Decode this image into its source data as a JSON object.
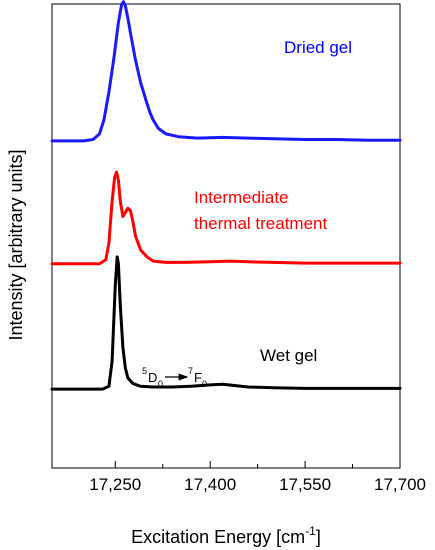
{
  "chart_data": {
    "type": "line",
    "xlabel": "Excitation Energy [cm",
    "xlabel_sup": "-1",
    "xlabel_end": "]",
    "ylabel": "Intensity  [arbitrary units]",
    "xlim": [
      17150,
      17700
    ],
    "xticks": [
      17250,
      17400,
      17550,
      17700
    ],
    "xtick_labels": [
      "17,250",
      "17,400",
      "17,550",
      "17,700"
    ],
    "minor_xticks": [
      17325,
      17475,
      17625
    ],
    "y_scale": "arbitrary (stacked offsets, no numeric ticks)",
    "grid": false,
    "series": [
      {
        "name": "Dried gel",
        "color": "#1a1aff",
        "label_color": "#0000ff",
        "baseline": 0.705,
        "x": [
          17150,
          17180,
          17200,
          17215,
          17225,
          17232,
          17240,
          17248,
          17255,
          17260,
          17263,
          17266,
          17270,
          17275,
          17282,
          17290,
          17298,
          17305,
          17310,
          17318,
          17330,
          17350,
          17380,
          17420,
          17460,
          17500,
          17550,
          17600,
          17650,
          17700
        ],
        "y": [
          0.0,
          0.0,
          0.0,
          0.01,
          0.05,
          0.15,
          0.35,
          0.6,
          0.85,
          0.98,
          1.0,
          0.97,
          0.88,
          0.75,
          0.58,
          0.42,
          0.3,
          0.2,
          0.15,
          0.09,
          0.05,
          0.03,
          0.02,
          0.025,
          0.02,
          0.015,
          0.01,
          0.01,
          0.005,
          0.005
        ]
      },
      {
        "name": "Intermediate thermal treatment",
        "color": "#ff0000",
        "label_color": "#ff0000",
        "baseline": 0.44,
        "x": [
          17150,
          17200,
          17225,
          17235,
          17240,
          17245,
          17249,
          17252,
          17255,
          17258,
          17262,
          17266,
          17270,
          17274,
          17278,
          17282,
          17290,
          17300,
          17310,
          17330,
          17360,
          17400,
          17430,
          17460,
          17500,
          17550,
          17600,
          17650,
          17700
        ],
        "y": [
          0.0,
          0.0,
          0.0,
          0.03,
          0.15,
          0.45,
          0.62,
          0.66,
          0.6,
          0.45,
          0.34,
          0.37,
          0.4,
          0.38,
          0.3,
          0.2,
          0.1,
          0.05,
          0.02,
          0.01,
          0.01,
          0.015,
          0.02,
          0.015,
          0.01,
          0.005,
          0.005,
          0.005,
          0.005
        ]
      },
      {
        "name": "Wet gel",
        "color": "#000000",
        "label_color": "#000000",
        "baseline": 0.17,
        "x": [
          17150,
          17200,
          17230,
          17240,
          17245,
          17250,
          17253,
          17255,
          17258,
          17262,
          17266,
          17270,
          17278,
          17290,
          17310,
          17340,
          17370,
          17400,
          17420,
          17440,
          17460,
          17500,
          17550,
          17600,
          17650,
          17700
        ],
        "y": [
          0.0,
          0.0,
          0.0,
          0.02,
          0.2,
          0.75,
          0.95,
          0.9,
          0.6,
          0.3,
          0.15,
          0.08,
          0.04,
          0.02,
          0.015,
          0.015,
          0.02,
          0.03,
          0.035,
          0.025,
          0.015,
          0.01,
          0.005,
          0.005,
          0.005,
          0.005
        ]
      }
    ],
    "annotations": [
      {
        "id": "dried",
        "text": "Dried gel",
        "color": "#0000ff"
      },
      {
        "id": "intermediate_1",
        "text": "Intermediate",
        "color": "#ff0000"
      },
      {
        "id": "intermediate_2",
        "text": "thermal treatment",
        "color": "#ff0000"
      },
      {
        "id": "wet",
        "text": "Wet gel",
        "color": "#000000"
      }
    ],
    "transition": {
      "upper_sup": "5",
      "upper": "D",
      "upper_sub": "0",
      "lower_sup": "7",
      "lower": "F",
      "lower_sub": "0"
    }
  }
}
